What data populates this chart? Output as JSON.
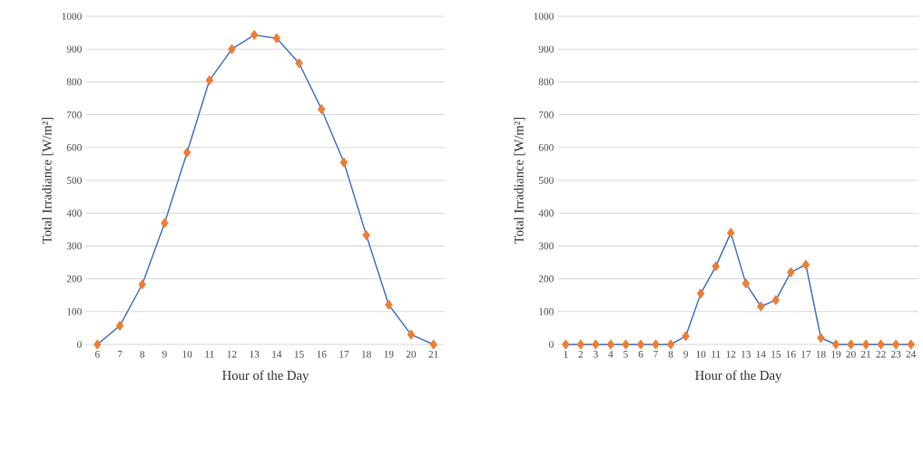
{
  "chart_data": [
    {
      "type": "line",
      "xlabel": "Hour of the Day",
      "ylabel": "Total Irradiance [W/m²]",
      "categories": [
        "6",
        "7",
        "8",
        "9",
        "10",
        "11",
        "12",
        "13",
        "14",
        "15",
        "16",
        "17",
        "18",
        "19",
        "20",
        "21"
      ],
      "series": [
        {
          "type": "line",
          "color": "#4472c4",
          "values": [
            0,
            57,
            183,
            370,
            585,
            805,
            900,
            943,
            933,
            857,
            717,
            555,
            333,
            121,
            30,
            0
          ]
        },
        {
          "type": "scatter",
          "color": "#ed7d31",
          "marker": "diamond",
          "values": [
            0,
            57,
            183,
            370,
            585,
            805,
            900,
            943,
            933,
            857,
            717,
            555,
            333,
            121,
            30,
            0
          ]
        }
      ],
      "ylim": [
        0,
        1000
      ],
      "yticks": [
        0,
        100,
        200,
        300,
        400,
        500,
        600,
        700,
        800,
        900,
        1000
      ],
      "grid": "y"
    },
    {
      "type": "line",
      "xlabel": "Hour of the Day",
      "ylabel": "Total Irradiance [W/m²]",
      "categories": [
        "1",
        "2",
        "3",
        "4",
        "5",
        "6",
        "7",
        "8",
        "9",
        "10",
        "11",
        "12",
        "13",
        "14",
        "15",
        "16",
        "17",
        "18",
        "19",
        "20",
        "21",
        "22",
        "23",
        "24"
      ],
      "series": [
        {
          "type": "line",
          "color": "#4472c4",
          "values": [
            0,
            0,
            0,
            0,
            0,
            0,
            0,
            0,
            25,
            155,
            238,
            340,
            186,
            116,
            135,
            220,
            243,
            20,
            0,
            0,
            0,
            0,
            0,
            0
          ]
        },
        {
          "type": "scatter",
          "color": "#ed7d31",
          "marker": "diamond",
          "values": [
            0,
            0,
            0,
            0,
            0,
            0,
            0,
            0,
            25,
            155,
            238,
            340,
            186,
            116,
            135,
            220,
            243,
            20,
            0,
            0,
            0,
            0,
            0,
            0
          ]
        }
      ],
      "ylim": [
        0,
        1000
      ],
      "yticks": [
        0,
        100,
        200,
        300,
        400,
        500,
        600,
        700,
        800,
        900,
        1000
      ],
      "grid": "y"
    }
  ]
}
